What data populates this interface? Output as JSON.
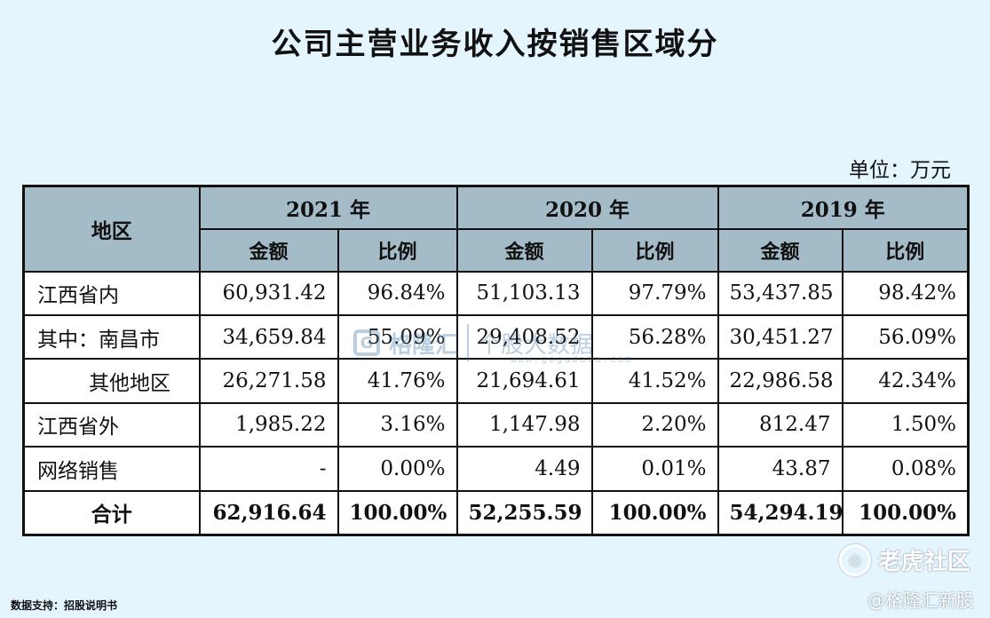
{
  "title": "公司主营业务收入按销售区域分",
  "unit": "单位：万元",
  "table": {
    "region_header": "地区",
    "years": [
      "2021 年",
      "2020 年",
      "2019 年"
    ],
    "sub_headers": [
      "金额",
      "比例"
    ],
    "rows": [
      {
        "label": "江西省内",
        "indent": false,
        "cells": [
          "60,931.42",
          "96.84%",
          "51,103.13",
          "97.79%",
          "53,437.85",
          "98.42%"
        ]
      },
      {
        "label": "其中：南昌市",
        "indent": false,
        "cells": [
          "34,659.84",
          "55.09%",
          "29,408.52",
          "56.28%",
          "30,451.27",
          "56.09%"
        ]
      },
      {
        "label": "其他地区",
        "indent": true,
        "cells": [
          "26,271.58",
          "41.76%",
          "21,694.61",
          "41.52%",
          "22,986.58",
          "42.34%"
        ]
      },
      {
        "label": "江西省外",
        "indent": false,
        "cells": [
          "1,985.22",
          "3.16%",
          "1,147.98",
          "2.20%",
          "812.47",
          "1.50%"
        ]
      },
      {
        "label": "网络销售",
        "indent": false,
        "cells": [
          "-",
          "0.00%",
          "4.49",
          "0.01%",
          "43.87",
          "0.08%"
        ]
      },
      {
        "label": "合计",
        "indent": false,
        "total": true,
        "cells": [
          "62,916.64",
          "100.00%",
          "52,255.59",
          "100.00%",
          "54,294.19",
          "100.00%"
        ]
      }
    ]
  },
  "source": "数据支持：招股说明书",
  "watermarks": {
    "center_brand": "格隆汇",
    "center_sub": "个股大数据",
    "center_url": "www.gogudata.com",
    "community": "老虎社区",
    "handle": "@格隆汇新股"
  }
}
